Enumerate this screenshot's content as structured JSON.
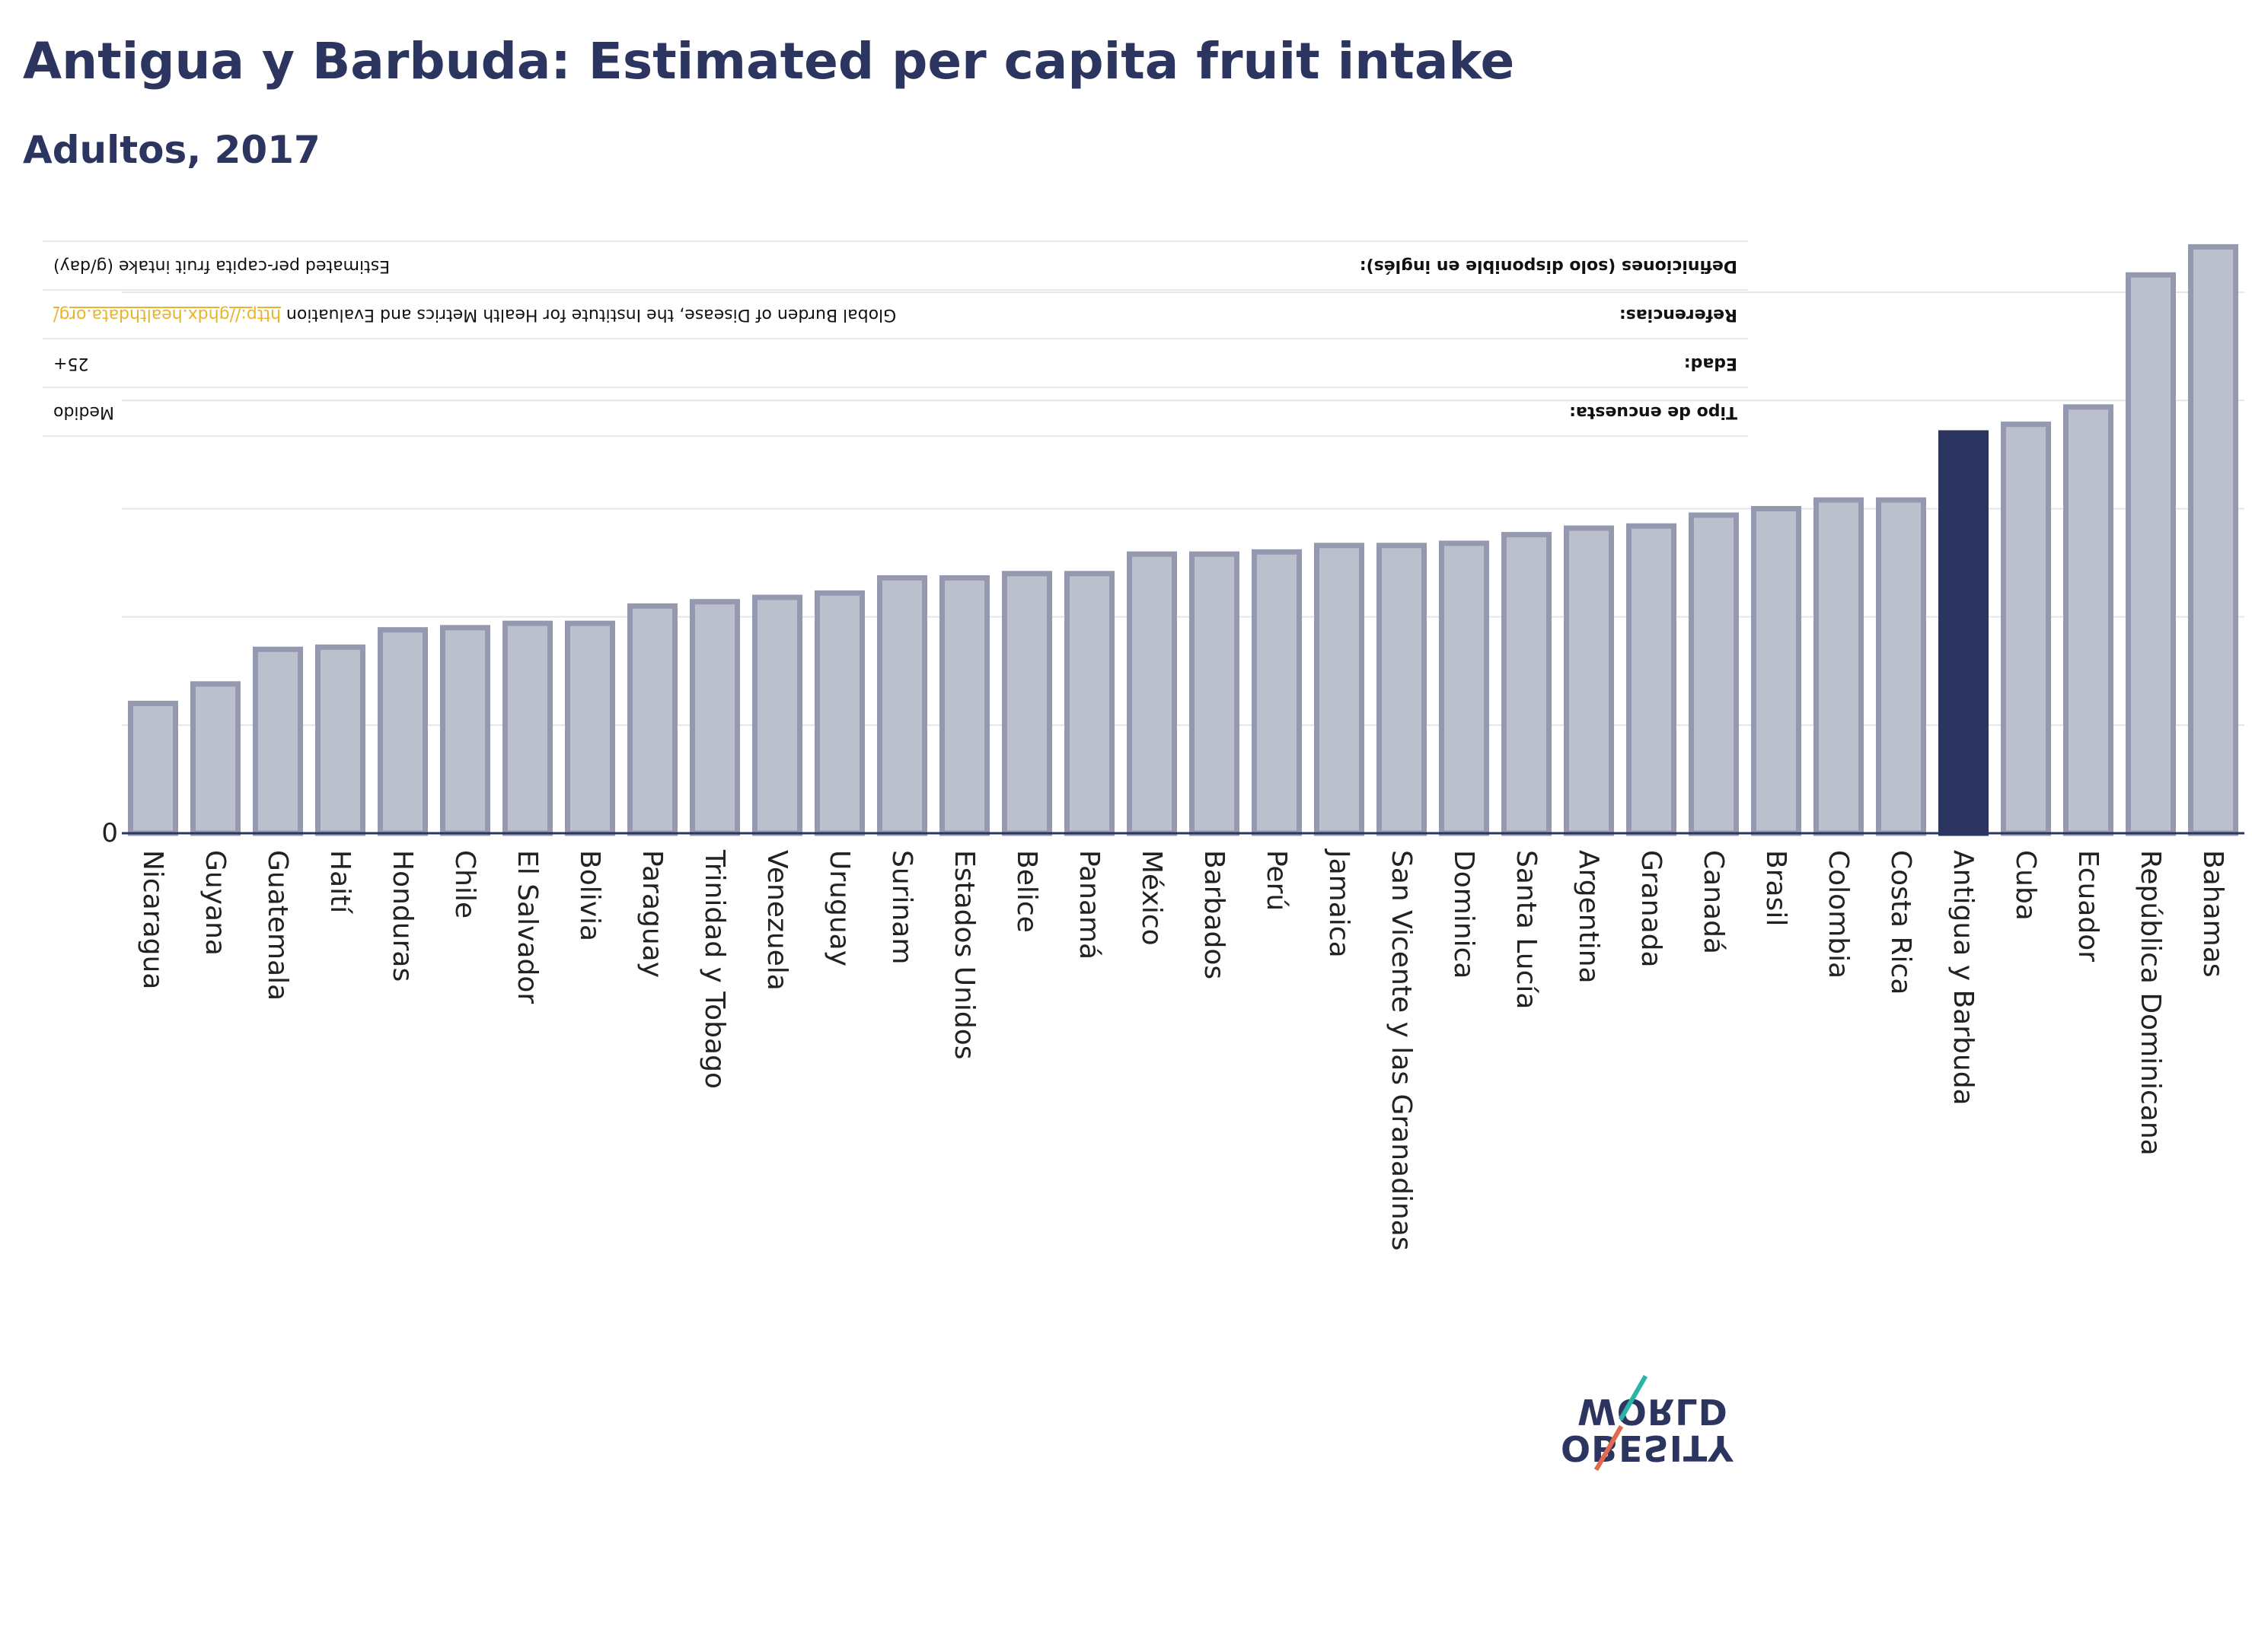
{
  "title": "Antigua y Barbuda: Estimated per capita fruit intake",
  "subtitle": "Adultos, 2017",
  "meta": {
    "definiciones_label": "Definiciones (solo disponible en inglés):",
    "definiciones_value": "Estimated per-capita fruit intake (g/day)",
    "referencias_label": "Referencias:",
    "referencias_value": "Global Burden of Disease, the Institute for Health Metrics and Evaluation",
    "referencias_link": "http://ghdx.healthdata.org/",
    "edad_label": "Edad:",
    "edad_value": "25+",
    "tipo_label": "Tipo de encuesta:",
    "tipo_value": "Medido"
  },
  "logo": {
    "line1": "OBESITY",
    "line2": "WORLD"
  },
  "colors": {
    "bar": "#bcbfcc",
    "bar_border": "#9599b0",
    "highlight": "#2b3560",
    "text": "#2b3560",
    "link": "#e8b52a"
  },
  "chart_data": {
    "type": "bar",
    "title": "Antigua y Barbuda: Estimated per capita fruit intake",
    "subtitle": "Adultos, 2017",
    "xlabel": "",
    "ylabel": "",
    "ytick_labels": [
      "0"
    ],
    "ylim": [
      0,
      275
    ],
    "grid": true,
    "highlight": "Antigua y Barbuda",
    "categories": [
      "Nicaragua",
      "Guyana",
      "Guatemala",
      "Haití",
      "Honduras",
      "Chile",
      "El Salvador",
      "Bolivia",
      "Paraguay",
      "Trinidad y Tobago",
      "Venezuela",
      "Uruguay",
      "Surinam",
      "Estados Unidos",
      "Belice",
      "Panamá",
      "México",
      "Barbados",
      "Perú",
      "Jamaica",
      "San Vicente y las Granadinas",
      "Dominica",
      "Santa Lucía",
      "Argentina",
      "Granada",
      "Canadá",
      "Brasil",
      "Colombia",
      "Costa Rica",
      "Antigua y Barbuda",
      "Cuba",
      "Ecuador",
      "República Dominicana",
      "Bahamas"
    ],
    "values": [
      60,
      69,
      85,
      86,
      94,
      95,
      97,
      97,
      105,
      107,
      109,
      111,
      118,
      118,
      120,
      120,
      129,
      129,
      130,
      133,
      133,
      134,
      138,
      141,
      142,
      147,
      150,
      154,
      154,
      185,
      189,
      197,
      258,
      271
    ]
  }
}
